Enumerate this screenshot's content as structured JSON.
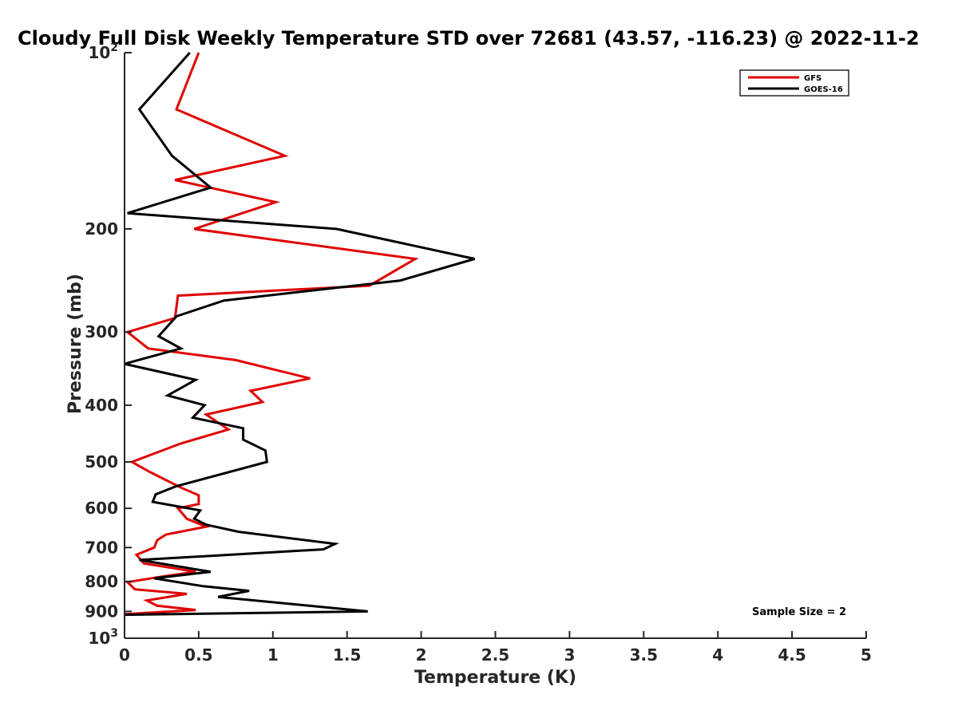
{
  "chart_data": {
    "type": "line",
    "title": "Cloudy Full Disk Weekly Temperature STD over 72681 (43.57, -116.23) @ 2022-11-2",
    "xlabel": "Temperature (K)",
    "ylabel": "Pressure (mb)",
    "xlim": [
      0,
      5
    ],
    "ylim": [
      100,
      1000
    ],
    "y_scale": "log",
    "y_reversed": true,
    "x_ticks": [
      0,
      0.5,
      1,
      1.5,
      2,
      2.5,
      3,
      3.5,
      4,
      4.5,
      5
    ],
    "x_tick_labels": [
      "0",
      "0.5",
      "1",
      "1.5",
      "2",
      "2.5",
      "3",
      "3.5",
      "4",
      "4.5",
      "5"
    ],
    "y_ticks": [
      100,
      200,
      300,
      400,
      500,
      600,
      700,
      800,
      900,
      1000
    ],
    "y_tick_labels": [
      {
        "base": "10",
        "exp": "2"
      },
      {
        "base": "200",
        "exp": ""
      },
      {
        "base": "300",
        "exp": ""
      },
      {
        "base": "400",
        "exp": ""
      },
      {
        "base": "500",
        "exp": ""
      },
      {
        "base": "600",
        "exp": ""
      },
      {
        "base": "700",
        "exp": ""
      },
      {
        "base": "800",
        "exp": ""
      },
      {
        "base": "900",
        "exp": ""
      },
      {
        "base": "10",
        "exp": "3"
      }
    ],
    "grid": false,
    "legend_position": "top-right",
    "annotation": "Sample Size = 2",
    "series": [
      {
        "name": "GFS",
        "color": "#e00000",
        "points": [
          [
            0.5,
            100
          ],
          [
            0.35,
            125
          ],
          [
            1.08,
            150
          ],
          [
            0.34,
            165
          ],
          [
            1.02,
            180
          ],
          [
            0.47,
            200
          ],
          [
            1.96,
            225
          ],
          [
            1.65,
            250
          ],
          [
            0.36,
            260
          ],
          [
            0.34,
            284
          ],
          [
            0.02,
            300
          ],
          [
            0.16,
            320
          ],
          [
            0.75,
            335
          ],
          [
            1.25,
            360
          ],
          [
            0.85,
            378
          ],
          [
            0.93,
            395
          ],
          [
            0.55,
            415
          ],
          [
            0.7,
            440
          ],
          [
            0.38,
            465
          ],
          [
            0.05,
            500
          ],
          [
            0.17,
            520
          ],
          [
            0.38,
            553
          ],
          [
            0.5,
            570
          ],
          [
            0.5,
            590
          ],
          [
            0.36,
            600
          ],
          [
            0.42,
            625
          ],
          [
            0.55,
            645
          ],
          [
            0.28,
            665
          ],
          [
            0.22,
            680
          ],
          [
            0.2,
            700
          ],
          [
            0.08,
            720
          ],
          [
            0.13,
            745
          ],
          [
            0.48,
            770
          ],
          [
            0.25,
            785
          ],
          [
            0.02,
            802
          ],
          [
            0.07,
            825
          ],
          [
            0.42,
            840
          ],
          [
            0.15,
            862
          ],
          [
            0.22,
            880
          ],
          [
            0.48,
            895
          ],
          [
            0.0,
            910
          ]
        ]
      },
      {
        "name": "GOES-16",
        "color": "#000000",
        "points": [
          [
            0.44,
            100
          ],
          [
            0.1,
            125
          ],
          [
            0.32,
            150
          ],
          [
            0.58,
            170
          ],
          [
            0.02,
            188
          ],
          [
            1.43,
            200
          ],
          [
            2.36,
            225
          ],
          [
            1.86,
            245
          ],
          [
            0.67,
            265
          ],
          [
            0.35,
            282
          ],
          [
            0.23,
            305
          ],
          [
            0.38,
            320
          ],
          [
            0.0,
            340
          ],
          [
            0.48,
            362
          ],
          [
            0.29,
            385
          ],
          [
            0.54,
            400
          ],
          [
            0.46,
            420
          ],
          [
            0.8,
            438
          ],
          [
            0.8,
            458
          ],
          [
            0.95,
            478
          ],
          [
            0.96,
            500
          ],
          [
            0.35,
            550
          ],
          [
            0.21,
            568
          ],
          [
            0.19,
            585
          ],
          [
            0.51,
            605
          ],
          [
            0.47,
            625
          ],
          [
            0.55,
            640
          ],
          [
            0.77,
            658
          ],
          [
            1.42,
            690
          ],
          [
            1.34,
            705
          ],
          [
            0.1,
            735
          ],
          [
            0.58,
            770
          ],
          [
            0.2,
            790
          ],
          [
            0.53,
            815
          ],
          [
            0.84,
            830
          ],
          [
            0.63,
            850
          ],
          [
            1.64,
            900
          ],
          [
            0.0,
            912
          ]
        ]
      }
    ]
  }
}
